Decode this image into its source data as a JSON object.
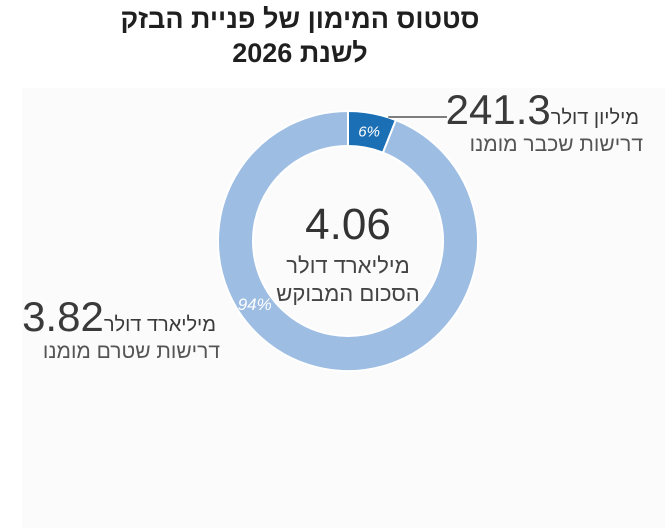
{
  "title_line1": "סטטוס המימון של פניית הבזק",
  "title_line2": "לשנת 2026",
  "center": {
    "value": "4.06",
    "unit": "מיליארד דולר",
    "label": "הסכום המבוקש"
  },
  "callouts": {
    "pre": {
      "value": "241.3",
      "unit": "מיליון דולר",
      "desc": "דרישות שכבר מומנו"
    },
    "post": {
      "value": "3.82",
      "unit": "מיליארד דולר",
      "desc": "דרישות שטרם מומנו"
    }
  },
  "colors": {
    "funded": "#1a6fb5",
    "unfunded": "#9dbde3",
    "leader_line": "#555555"
  },
  "chart_data": {
    "type": "pie",
    "donut": true,
    "slices": [
      {
        "label": "דרישות שכבר מומנו",
        "value": 6,
        "display": "6%",
        "color": "#1a6fb5"
      },
      {
        "label": "דרישות שטרם מומנו",
        "value": 94,
        "display": "94%",
        "color": "#9dbde3"
      }
    ]
  }
}
